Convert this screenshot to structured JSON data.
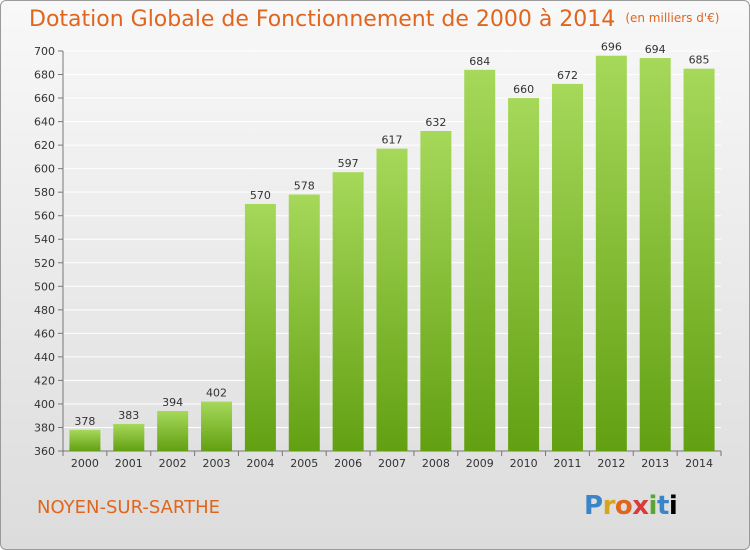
{
  "header": {
    "title": "Dotation Globale de Fonctionnement de 2000 à 2014",
    "subtitle": "(en milliers d'€)"
  },
  "footer": {
    "city": "NOYEN-SUR-SARTHE",
    "logo": "Proxiti"
  },
  "colors": {
    "title": "#e0661f",
    "bar_light": "#a6d85a",
    "bar_dark": "#62a012",
    "grid": "#ffffff"
  },
  "chart_data": {
    "type": "bar",
    "title": "Dotation Globale de Fonctionnement de 2000 à 2014",
    "subtitle": "(en milliers d'€)",
    "xlabel": "",
    "ylabel": "",
    "ylim": [
      360,
      700
    ],
    "yticks": [
      360,
      380,
      400,
      420,
      440,
      460,
      480,
      500,
      520,
      540,
      560,
      580,
      600,
      620,
      640,
      660,
      680,
      700
    ],
    "grid": true,
    "categories": [
      "2000",
      "2001",
      "2002",
      "2003",
      "2004",
      "2005",
      "2006",
      "2007",
      "2008",
      "2009",
      "2010",
      "2011",
      "2012",
      "2013",
      "2014"
    ],
    "values": [
      378,
      383,
      394,
      402,
      570,
      578,
      597,
      617,
      632,
      684,
      660,
      672,
      696,
      694,
      685
    ]
  }
}
